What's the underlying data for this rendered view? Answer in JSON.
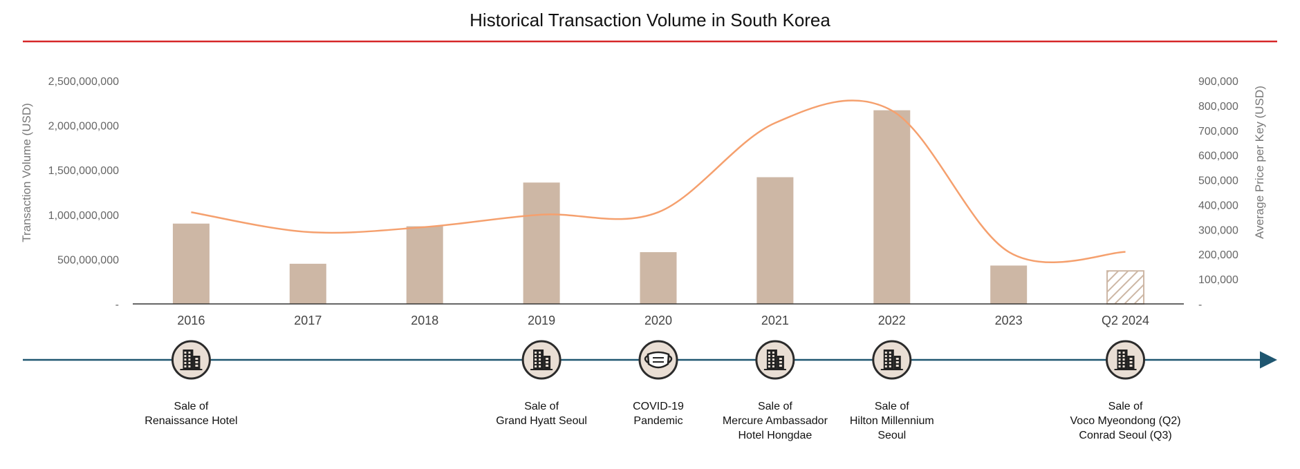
{
  "chart_data": {
    "type": "bar",
    "title": "Historical Transaction Volume in South Korea",
    "categories": [
      "2016",
      "2017",
      "2018",
      "2019",
      "2020",
      "2021",
      "2022",
      "2023",
      "Q2 2024"
    ],
    "series": [
      {
        "kind": "bar",
        "axis": "left",
        "values": [
          900000000,
          450000000,
          870000000,
          1360000000,
          580000000,
          1420000000,
          2170000000,
          430000000,
          370000000
        ],
        "hatched_category": "Q2 2024"
      },
      {
        "kind": "line",
        "axis": "right",
        "smooth": true,
        "values": [
          370000,
          290000,
          310000,
          360000,
          370000,
          730000,
          780000,
          210000,
          210000
        ]
      }
    ],
    "ylabel": "Transaction Volume (USD)",
    "y2label": "Average Price per Key (USD)",
    "ylim": [
      0,
      2500000000
    ],
    "y2lim": [
      0,
      900000
    ],
    "yticks": [
      "-",
      "500,000,000",
      "1,000,000,000",
      "1,500,000,000",
      "2,000,000,000",
      "2,500,000,000"
    ],
    "y2ticks": [
      "-",
      "100,000",
      "200,000",
      "300,000",
      "400,000",
      "500,000",
      "600,000",
      "700,000",
      "800,000",
      "900,000"
    ],
    "grid": false,
    "colors": {
      "bar": "#cdb7a5",
      "line": "#f5a06e",
      "title_rule": "#d62728",
      "timeline": "#1f5670"
    }
  },
  "timeline": {
    "events": [
      {
        "category": "2016",
        "icon": "building-icon",
        "lines": [
          "Sale of",
          "Renaissance Hotel"
        ]
      },
      {
        "category": "2019",
        "icon": "building-icon",
        "lines": [
          "Sale of",
          "Grand Hyatt Seoul"
        ]
      },
      {
        "category": "2020",
        "icon": "face-mask-icon",
        "lines": [
          "COVID-19",
          "Pandemic"
        ]
      },
      {
        "category": "2021",
        "icon": "building-icon",
        "lines": [
          "Sale of",
          "Mercure Ambassador",
          "Hotel Hongdae"
        ]
      },
      {
        "category": "2022",
        "icon": "building-icon",
        "lines": [
          "Sale of",
          "Hilton Millennium",
          "Seoul"
        ]
      },
      {
        "category": "Q2 2024",
        "icon": "building-icon",
        "lines": [
          "Sale of",
          "Voco Myeondong (Q2)",
          "Conrad Seoul (Q3)"
        ]
      }
    ]
  }
}
